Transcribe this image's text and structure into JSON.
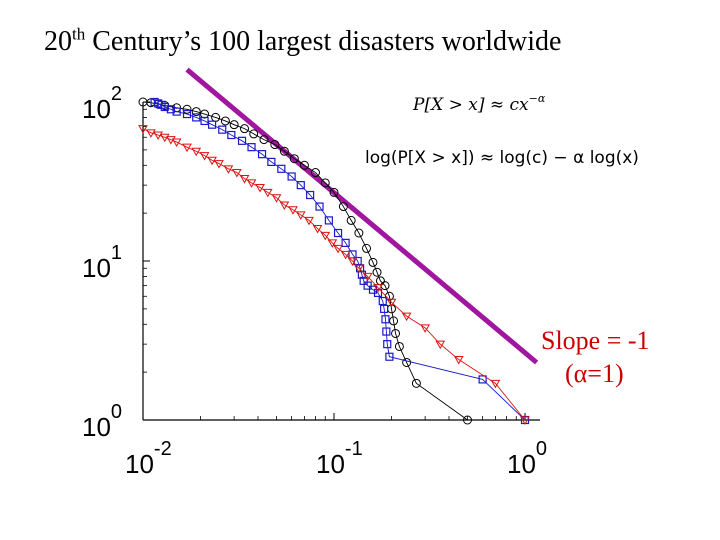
{
  "title": {
    "base": "20",
    "sup": "th",
    "rest": " Century’s 100 largest disasters worldwide"
  },
  "formulas": {
    "power_law": "P[X > x] ≈ cx",
    "power_law_exp": "−α",
    "log_form": "log(P[X > x]) ≈ log(c) − α log(x)"
  },
  "annotation": {
    "line1": "Slope = -1",
    "line2": "(α=1)"
  },
  "colors": {
    "series_black": "#000000",
    "series_blue": "#1a1acc",
    "series_red": "#dd1111",
    "slope_line": "#a0169f",
    "annotation": "#cc0000"
  },
  "chart_data": {
    "type": "scatter",
    "x_scale": "log",
    "y_scale": "log",
    "xlim": [
      0.01,
      1.2
    ],
    "ylim": [
      1,
      100
    ],
    "x_ticks": [
      {
        "base": "10",
        "exp": "-2",
        "value": 0.01
      },
      {
        "base": "10",
        "exp": "-1",
        "value": 0.1
      },
      {
        "base": "10",
        "exp": "0",
        "value": 1
      }
    ],
    "y_ticks": [
      {
        "base": "10",
        "exp": "0",
        "value": 1
      },
      {
        "base": "10",
        "exp": "1",
        "value": 10
      },
      {
        "base": "10",
        "exp": "2",
        "value": 100
      }
    ],
    "grid": false,
    "series": [
      {
        "marker": "circle",
        "color": "#000000",
        "points": [
          [
            0.01,
            100
          ],
          [
            0.011,
            99
          ],
          [
            0.012,
            97
          ],
          [
            0.013,
            95
          ],
          [
            0.015,
            92
          ],
          [
            0.017,
            90
          ],
          [
            0.019,
            87
          ],
          [
            0.021,
            84
          ],
          [
            0.024,
            80
          ],
          [
            0.027,
            76
          ],
          [
            0.03,
            72
          ],
          [
            0.034,
            68
          ],
          [
            0.038,
            63
          ],
          [
            0.043,
            58
          ],
          [
            0.049,
            54
          ],
          [
            0.055,
            49
          ],
          [
            0.062,
            44
          ],
          [
            0.07,
            40
          ],
          [
            0.08,
            36
          ],
          [
            0.09,
            31
          ],
          [
            0.1,
            27
          ],
          [
            0.112,
            22
          ],
          [
            0.123,
            18
          ],
          [
            0.135,
            15
          ],
          [
            0.148,
            12
          ],
          [
            0.16,
            9.8
          ],
          [
            0.168,
            8.5
          ],
          [
            0.175,
            7.5
          ],
          [
            0.185,
            7.0
          ],
          [
            0.195,
            6.0
          ],
          [
            0.2,
            5.0
          ],
          [
            0.205,
            4.2
          ],
          [
            0.21,
            3.5
          ],
          [
            0.22,
            2.9
          ],
          [
            0.24,
            2.3
          ],
          [
            0.27,
            1.7
          ],
          [
            0.5,
            1.0
          ]
        ]
      },
      {
        "marker": "square",
        "color": "#1a1acc",
        "points": [
          [
            0.0115,
            100
          ],
          [
            0.012,
            98
          ],
          [
            0.0125,
            96
          ],
          [
            0.013,
            93
          ],
          [
            0.014,
            90
          ],
          [
            0.015,
            87
          ],
          [
            0.017,
            84
          ],
          [
            0.019,
            80
          ],
          [
            0.021,
            76
          ],
          [
            0.023,
            72
          ],
          [
            0.026,
            67
          ],
          [
            0.029,
            62
          ],
          [
            0.033,
            57
          ],
          [
            0.037,
            52
          ],
          [
            0.042,
            47
          ],
          [
            0.047,
            42
          ],
          [
            0.053,
            38
          ],
          [
            0.06,
            34
          ],
          [
            0.067,
            30
          ],
          [
            0.075,
            26
          ],
          [
            0.084,
            22
          ],
          [
            0.094,
            18
          ],
          [
            0.105,
            15
          ],
          [
            0.115,
            13
          ],
          [
            0.125,
            11
          ],
          [
            0.133,
            10
          ],
          [
            0.137,
            9.0
          ],
          [
            0.14,
            8.2
          ],
          [
            0.143,
            7.5
          ],
          [
            0.15,
            7.0
          ],
          [
            0.16,
            6.6
          ],
          [
            0.17,
            6.3
          ],
          [
            0.18,
            5.6
          ],
          [
            0.183,
            5.0
          ],
          [
            0.186,
            4.3
          ],
          [
            0.188,
            3.6
          ],
          [
            0.19,
            3.0
          ],
          [
            0.195,
            2.5
          ],
          [
            0.6,
            1.8
          ],
          [
            1.0,
            1.0
          ]
        ]
      },
      {
        "marker": "triangle-down",
        "color": "#dd1111",
        "points": [
          [
            0.01,
            68
          ],
          [
            0.011,
            64
          ],
          [
            0.012,
            62
          ],
          [
            0.013,
            60
          ],
          [
            0.014,
            58
          ],
          [
            0.015,
            56
          ],
          [
            0.017,
            52
          ],
          [
            0.019,
            49
          ],
          [
            0.021,
            46
          ],
          [
            0.023,
            43
          ],
          [
            0.025,
            41
          ],
          [
            0.028,
            38
          ],
          [
            0.031,
            36
          ],
          [
            0.034,
            33
          ],
          [
            0.037,
            31
          ],
          [
            0.041,
            29
          ],
          [
            0.045,
            27
          ],
          [
            0.05,
            25
          ],
          [
            0.055,
            22.5
          ],
          [
            0.061,
            21
          ],
          [
            0.067,
            19.5
          ],
          [
            0.074,
            18
          ],
          [
            0.082,
            16
          ],
          [
            0.09,
            14.5
          ],
          [
            0.098,
            13
          ],
          [
            0.105,
            12
          ],
          [
            0.115,
            11
          ],
          [
            0.125,
            10
          ],
          [
            0.135,
            9
          ],
          [
            0.15,
            8
          ],
          [
            0.17,
            6.8
          ],
          [
            0.2,
            5.5
          ],
          [
            0.24,
            4.5
          ],
          [
            0.3,
            3.8
          ],
          [
            0.36,
            3.0
          ],
          [
            0.45,
            2.4
          ],
          [
            0.7,
            1.7
          ],
          [
            1.0,
            1.0
          ]
        ]
      }
    ],
    "reference_line": {
      "label": "Slope = -1",
      "slope": -1,
      "points": [
        [
          0.017,
          160
        ],
        [
          1.15,
          2.3
        ]
      ]
    }
  }
}
